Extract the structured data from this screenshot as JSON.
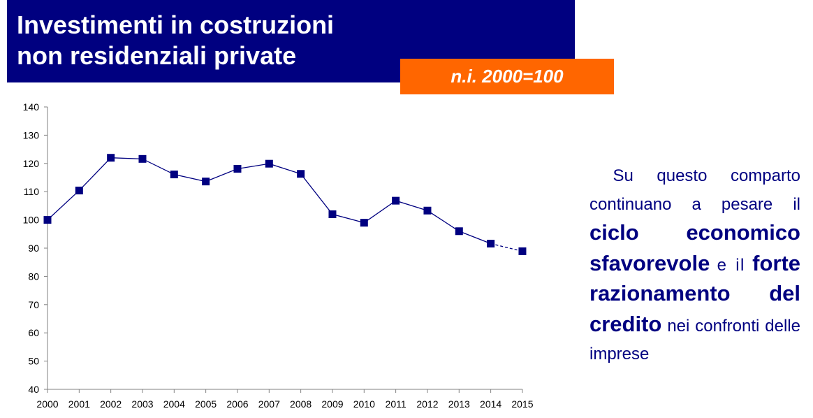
{
  "header": {
    "title_line1": "Investimenti in costruzioni",
    "title_line2": "non residenziali private",
    "subtitle": "n.i. 2000=100"
  },
  "colors": {
    "title_bg": "#000080",
    "subtitle_bg": "#ff6600",
    "series": "#000080",
    "text": "#000080"
  },
  "chart_data": {
    "type": "line",
    "categories": [
      "2000",
      "2001",
      "2002",
      "2003",
      "2004",
      "2005",
      "2006",
      "2007",
      "2008",
      "2009",
      "2010",
      "2011",
      "2012",
      "2013",
      "2014",
      "2015"
    ],
    "values": [
      100,
      110.4,
      122,
      121.6,
      116.1,
      113.6,
      118.1,
      119.9,
      116.3,
      102,
      99,
      106.8,
      103.3,
      96,
      91.6,
      88.9
    ],
    "dashed_last_segment": true,
    "ylim": [
      40,
      140
    ],
    "yticks": [
      40,
      50,
      60,
      70,
      80,
      90,
      100,
      110,
      120,
      130,
      140
    ],
    "title": "",
    "xlabel": "",
    "ylabel": "",
    "grid": false,
    "marker": "square"
  },
  "side_text": {
    "p1": "Su questo comparto continuano a pesare il",
    "em1": "ciclo economico sfavorevole",
    "p2": "e il",
    "em2": "forte razionamento del credito",
    "p3": "nei confronti delle imprese"
  }
}
